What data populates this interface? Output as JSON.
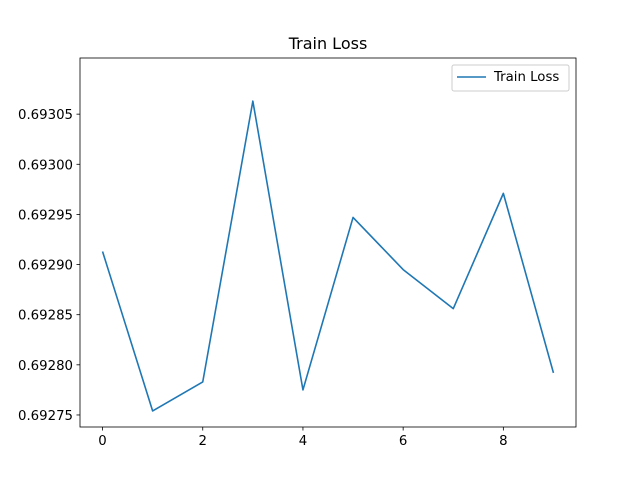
{
  "chart_data": {
    "type": "line",
    "title": "Train Loss",
    "xlabel": "",
    "ylabel": "",
    "xlim": [
      -0.45,
      9.45
    ],
    "ylim": [
      0.692738,
      0.693106
    ],
    "xticks": [
      0,
      2,
      4,
      6,
      8
    ],
    "yticks": [
      0.69275,
      0.6928,
      0.69285,
      0.6929,
      0.69295,
      0.693,
      0.69305
    ],
    "xtick_labels": [
      "0",
      "2",
      "4",
      "6",
      "8"
    ],
    "ytick_labels": [
      "0.69275",
      "0.69280",
      "0.69285",
      "0.69290",
      "0.69295",
      "0.69300",
      "0.69305"
    ],
    "grid": false,
    "legend_position": "top-right",
    "series": [
      {
        "name": "Train Loss",
        "color": "#1f77b4",
        "x": [
          0,
          1,
          2,
          3,
          4,
          5,
          6,
          7,
          8,
          9
        ],
        "values": [
          0.692913,
          0.692754,
          0.692783,
          0.693063,
          0.692775,
          0.692947,
          0.692895,
          0.692856,
          0.692971,
          0.692792
        ]
      }
    ]
  }
}
